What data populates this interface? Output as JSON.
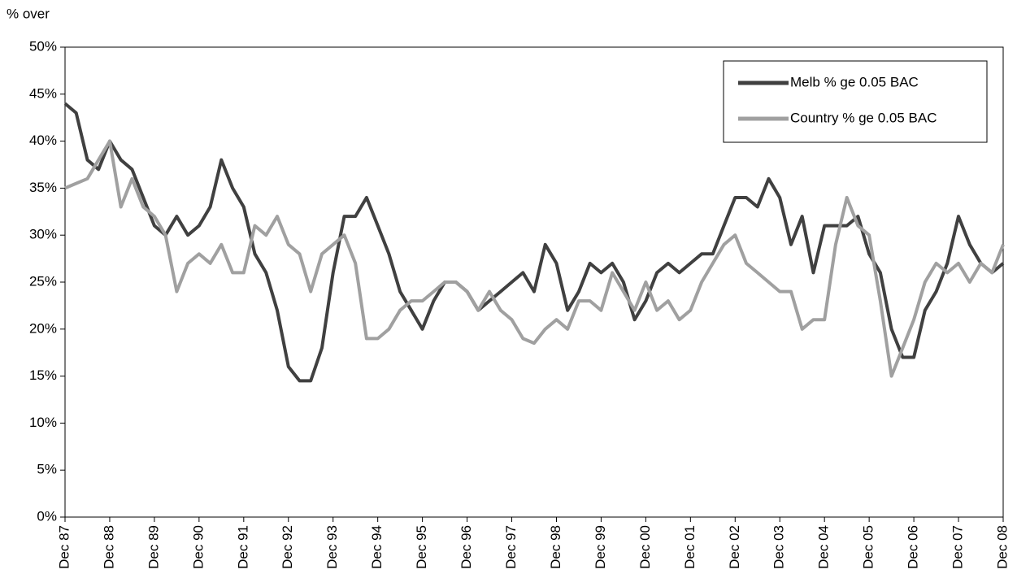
{
  "chart_data": {
    "type": "line",
    "y_axis_label": "% over",
    "categories": [
      "Dec 87",
      null,
      null,
      null,
      "Dec 88",
      null,
      null,
      null,
      "Dec 89",
      null,
      null,
      null,
      "Dec 90",
      null,
      null,
      null,
      "Dec 91",
      null,
      null,
      null,
      "Dec 92",
      null,
      null,
      null,
      "Dec 93",
      null,
      null,
      null,
      "Dec 94",
      null,
      null,
      null,
      "Dec 95",
      null,
      null,
      null,
      "Dec 96",
      null,
      null,
      null,
      "Dec 97",
      null,
      null,
      null,
      "Dec 98",
      null,
      null,
      null,
      "Dec 99",
      null,
      null,
      null,
      "Dec 00",
      null,
      null,
      null,
      "Dec 01",
      null,
      null,
      null,
      "Dec 02",
      null,
      null,
      null,
      "Dec 03",
      null,
      null,
      null,
      "Dec 04",
      null,
      null,
      null,
      "Dec 05",
      null,
      null,
      null,
      "Dec 06",
      null,
      null,
      null,
      "Dec 07",
      null,
      null,
      null,
      "Dec 08"
    ],
    "series": [
      {
        "name": "Melb % ge 0.05 BAC",
        "color": "#404040",
        "values": [
          44,
          43,
          38,
          37,
          40,
          38,
          37,
          34,
          31,
          30,
          32,
          30,
          31,
          33,
          38,
          35,
          33,
          28,
          26,
          22,
          16,
          14.5,
          14.5,
          18,
          26,
          32,
          32,
          34,
          31,
          28,
          24,
          22,
          20,
          23,
          25,
          25,
          24,
          22,
          23,
          24,
          25,
          26,
          24,
          29,
          27,
          22,
          24,
          27,
          26,
          27,
          25,
          21,
          23,
          26,
          27,
          26,
          27,
          28,
          28,
          31,
          34,
          34,
          33,
          36,
          34,
          29,
          32,
          26,
          31,
          31,
          31,
          32,
          28,
          26,
          20,
          17,
          17,
          22,
          24,
          27,
          32,
          29,
          27,
          26,
          27
        ]
      },
      {
        "name": "Country % ge 0.05 BAC",
        "color": "#a0a0a0",
        "values": [
          35,
          35.5,
          36,
          38,
          40,
          33,
          36,
          33,
          32,
          30,
          24,
          27,
          28,
          27,
          29,
          26,
          26,
          31,
          30,
          32,
          29,
          28,
          24,
          28,
          29,
          30,
          27,
          19,
          19,
          20,
          22,
          23,
          23,
          24,
          25,
          25,
          24,
          22,
          24,
          22,
          21,
          19,
          18.5,
          20,
          21,
          20,
          23,
          23,
          22,
          26,
          24,
          22,
          25,
          22,
          23,
          21,
          22,
          25,
          27,
          29,
          30,
          27,
          26,
          25,
          24,
          24,
          20,
          21,
          21,
          29,
          34,
          31,
          30,
          23,
          15,
          18,
          21,
          25,
          27,
          26,
          27,
          25,
          27,
          26,
          29
        ]
      }
    ],
    "ylim": [
      0,
      50
    ],
    "yticks": [
      {
        "value": 0,
        "label": "0%"
      },
      {
        "value": 5,
        "label": "5%"
      },
      {
        "value": 10,
        "label": "10%"
      },
      {
        "value": 15,
        "label": "15%"
      },
      {
        "value": 20,
        "label": "20%"
      },
      {
        "value": 25,
        "label": "25%"
      },
      {
        "value": 30,
        "label": "30%"
      },
      {
        "value": 35,
        "label": "35%"
      },
      {
        "value": 40,
        "label": "40%"
      },
      {
        "value": 45,
        "label": "45%"
      },
      {
        "value": 50,
        "label": "50%"
      }
    ],
    "legend": "top-right"
  }
}
